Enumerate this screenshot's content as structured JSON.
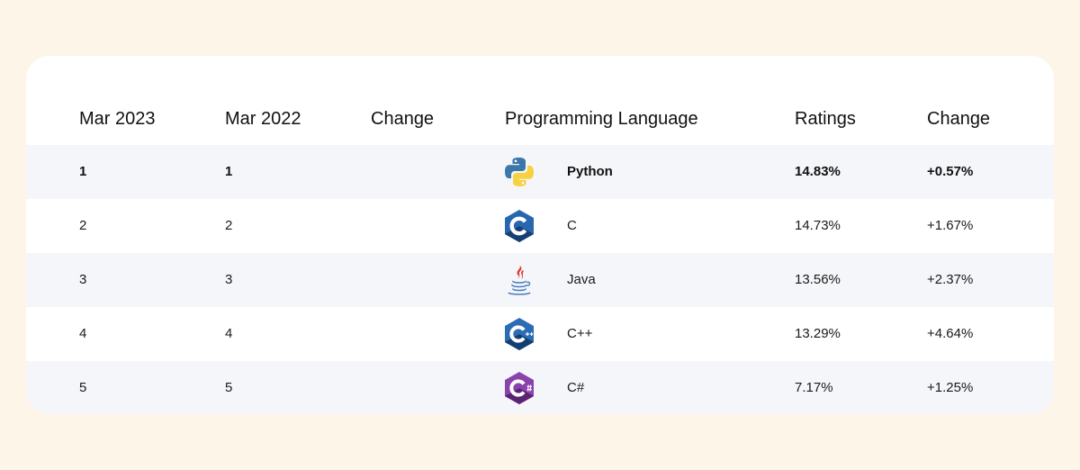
{
  "table": {
    "headers": {
      "current": "Mar 2023",
      "previous": "Mar 2022",
      "change": "Change",
      "language": "Programming Language",
      "ratings": "Ratings",
      "rating_change": "Change"
    },
    "rows": [
      {
        "current": "1",
        "previous": "1",
        "change": "",
        "icon": "python-icon",
        "language": "Python",
        "rating": "14.83%",
        "rating_change": "+0.57%"
      },
      {
        "current": "2",
        "previous": "2",
        "change": "",
        "icon": "c-language-icon",
        "language": "C",
        "rating": "14.73%",
        "rating_change": "+1.67%"
      },
      {
        "current": "3",
        "previous": "3",
        "change": "",
        "icon": "java-icon",
        "language": "Java",
        "rating": "13.56%",
        "rating_change": "+2.37%"
      },
      {
        "current": "4",
        "previous": "4",
        "change": "",
        "icon": "cpp-icon",
        "language": "C++",
        "rating": "13.29%",
        "rating_change": "+4.64%"
      },
      {
        "current": "5",
        "previous": "5",
        "change": "",
        "icon": "csharp-icon",
        "language": "C#",
        "rating": "7.17%",
        "rating_change": "+1.25%"
      }
    ]
  },
  "colors": {
    "page_background": "#fdf5e7",
    "card_background": "#ffffff",
    "row_shade": "#f5f6f9",
    "c_blue": "#1f5aa0",
    "cpp_blue": "#1d4f8c",
    "csharp_purple": "#7a3b9a",
    "python_blue": "#3b77a8",
    "python_yellow": "#f7d13f",
    "java_red": "#e0372d",
    "java_blue": "#4b7cc0"
  }
}
